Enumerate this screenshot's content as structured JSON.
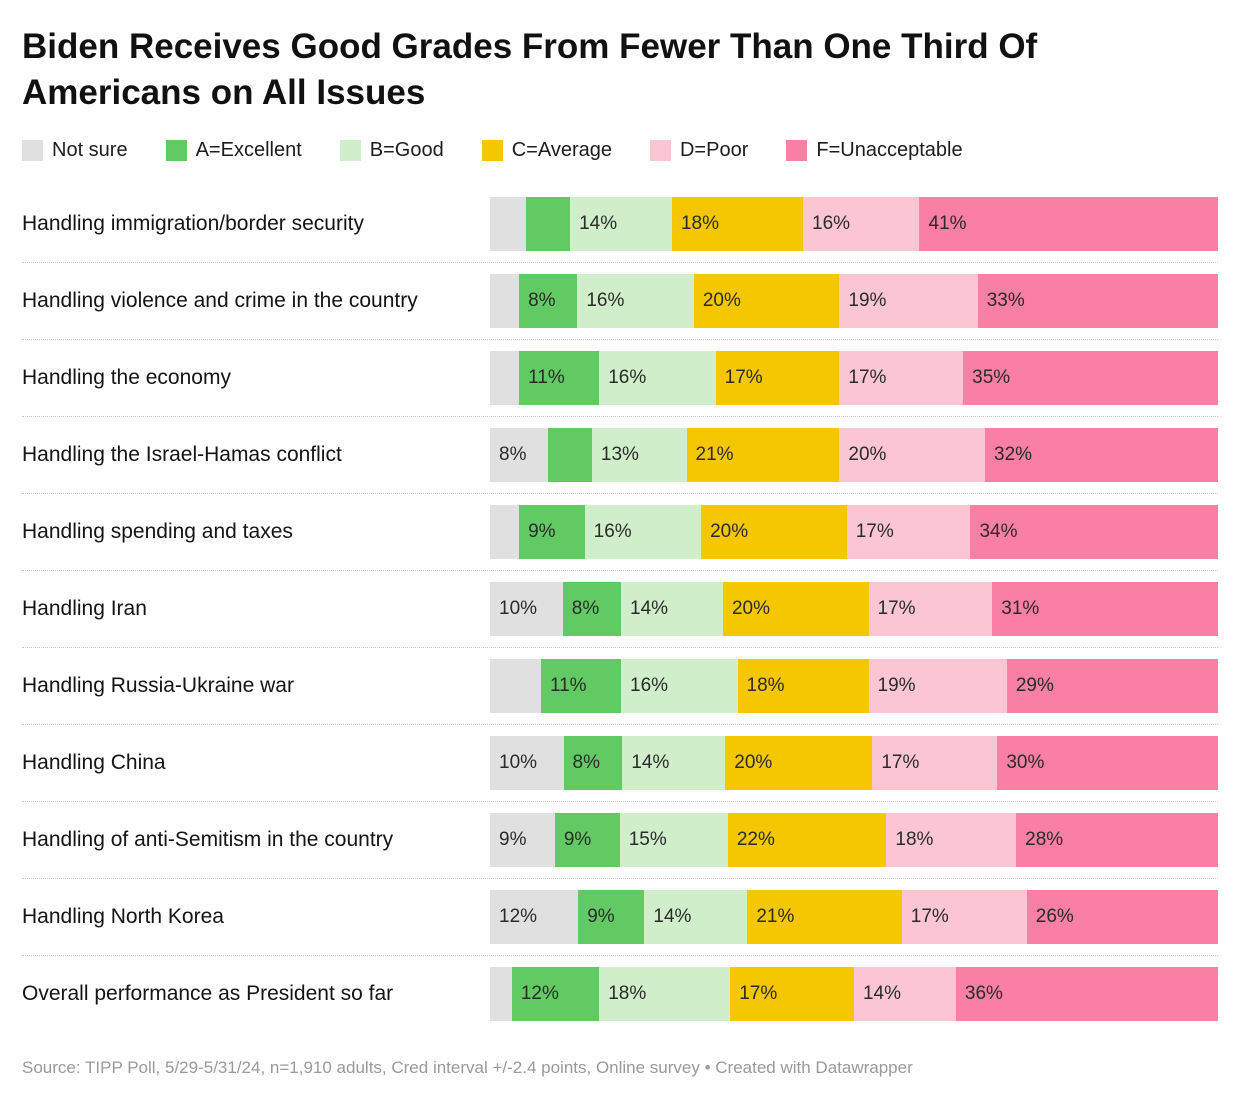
{
  "title": "Biden Receives Good Grades From Fewer Than One Third Of Americans on All Issues",
  "source": "Source: TIPP Poll, 5/29-5/31/24, n=1,910 adults, Cred interval +/-2.4 points, Online survey • Created with Datawrapper",
  "chart_data": {
    "type": "bar",
    "stacked": true,
    "orientation": "horizontal",
    "title": "Biden Receives Good Grades From Fewer Than One Third Of Americans on All Issues",
    "legend_position": "top",
    "grid": false,
    "legend": [
      {
        "label": "Not sure",
        "color": "#e0e0e0"
      },
      {
        "label": "A=Excellent",
        "color": "#62ca62"
      },
      {
        "label": "B=Good",
        "color": "#cfeec9"
      },
      {
        "label": "C=Average",
        "color": "#f5c700"
      },
      {
        "label": "D=Poor",
        "color": "#fcc5d3"
      },
      {
        "label": "F=Unacceptable",
        "color": "#fa7fa5"
      }
    ],
    "rows": [
      {
        "category": "Handling immigration/border security",
        "values": [
          5,
          6,
          14,
          18,
          16,
          41
        ],
        "labels": [
          "",
          "",
          "14%",
          "18%",
          "16%",
          "41%"
        ]
      },
      {
        "category": "Handling violence and crime in the country",
        "values": [
          4,
          8,
          16,
          20,
          19,
          33
        ],
        "labels": [
          "",
          "8%",
          "16%",
          "20%",
          "19%",
          "33%"
        ]
      },
      {
        "category": "Handling the economy",
        "values": [
          4,
          11,
          16,
          17,
          17,
          35
        ],
        "labels": [
          "",
          "11%",
          "16%",
          "17%",
          "17%",
          "35%"
        ]
      },
      {
        "category": "Handling the Israel-Hamas conflict",
        "values": [
          8,
          6,
          13,
          21,
          20,
          32
        ],
        "labels": [
          "8%",
          "",
          "13%",
          "21%",
          "20%",
          "32%"
        ]
      },
      {
        "category": "Handling spending and taxes",
        "values": [
          4,
          9,
          16,
          20,
          17,
          34
        ],
        "labels": [
          "",
          "9%",
          "16%",
          "20%",
          "17%",
          "34%"
        ]
      },
      {
        "category": "Handling Iran",
        "values": [
          10,
          8,
          14,
          20,
          17,
          31
        ],
        "labels": [
          "10%",
          "8%",
          "14%",
          "20%",
          "17%",
          "31%"
        ]
      },
      {
        "category": "Handling Russia-Ukraine war",
        "values": [
          7,
          11,
          16,
          18,
          19,
          29
        ],
        "labels": [
          "",
          "11%",
          "16%",
          "18%",
          "19%",
          "29%"
        ]
      },
      {
        "category": "Handling China",
        "values": [
          10,
          8,
          14,
          20,
          17,
          30
        ],
        "labels": [
          "10%",
          "8%",
          "14%",
          "20%",
          "17%",
          "30%"
        ]
      },
      {
        "category": "Handling of anti-Semitism in the country",
        "values": [
          9,
          9,
          15,
          22,
          18,
          28
        ],
        "labels": [
          "9%",
          "9%",
          "15%",
          "22%",
          "18%",
          "28%"
        ]
      },
      {
        "category": "Handling North Korea",
        "values": [
          12,
          9,
          14,
          21,
          17,
          26
        ],
        "labels": [
          "12%",
          "9%",
          "14%",
          "21%",
          "17%",
          "26%"
        ]
      },
      {
        "category": "Overall performance as President so far",
        "values": [
          3,
          12,
          18,
          17,
          14,
          36
        ],
        "labels": [
          "",
          "12%",
          "18%",
          "17%",
          "14%",
          "36%"
        ]
      }
    ]
  }
}
